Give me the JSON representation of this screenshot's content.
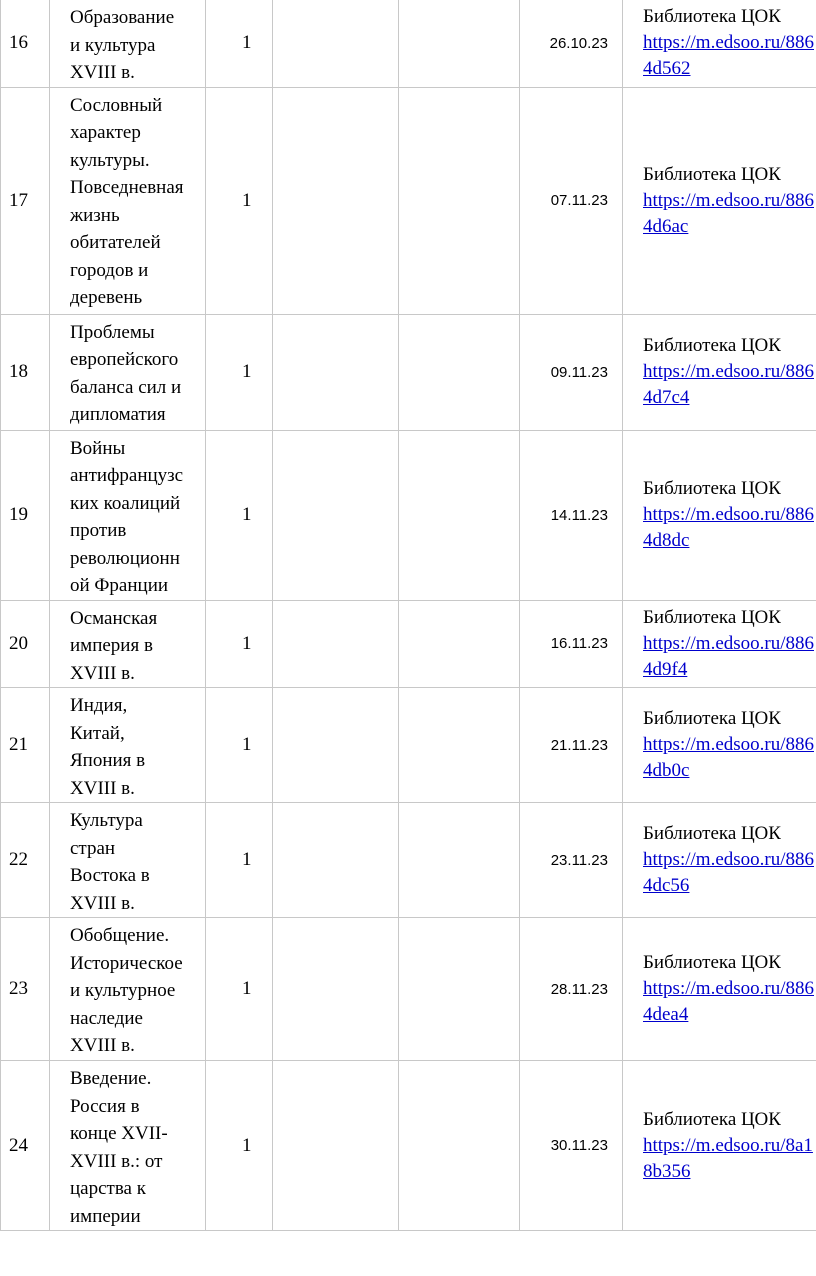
{
  "rows": [
    {
      "num": "16",
      "topic": "Образование\nи культура\nXVIII в.",
      "hours": "1",
      "date": "26.10.23",
      "resource": "Библиотека ЦОК",
      "link": "https://m.edsoo.ru/8864d562"
    },
    {
      "num": "17",
      "topic": "Сословный\nхарактер\nкультуры.\nПовседневная\nжизнь\nобитателей\nгородов и\nдеревень",
      "hours": "1",
      "date": "07.11.23",
      "resource": "Библиотека ЦОК",
      "link": "https://m.edsoo.ru/8864d6ac"
    },
    {
      "num": "18",
      "topic": "Проблемы\nевропейского\nбаланса сил и\nдипломатия",
      "hours": "1",
      "date": "09.11.23",
      "resource": "Библиотека ЦОК",
      "link": "https://m.edsoo.ru/8864d7c4"
    },
    {
      "num": "19",
      "topic": "Войны\nантифранцузс\nких коалиций\nпротив\nреволюционн\nой Франции",
      "hours": "1",
      "date": "14.11.23",
      "resource": "Библиотека ЦОК",
      "link": "https://m.edsoo.ru/8864d8dc"
    },
    {
      "num": "20",
      "topic": "Османская\nимперия в\nXVIII в.",
      "hours": "1",
      "date": "16.11.23",
      "resource": "Библиотека ЦОК",
      "link": "https://m.edsoo.ru/8864d9f4"
    },
    {
      "num": "21",
      "topic": "Индия,\nКитай,\nЯпония в\nXVIII в.",
      "hours": "1",
      "date": "21.11.23",
      "resource": "Библиотека ЦОК",
      "link": "https://m.edsoo.ru/8864db0c"
    },
    {
      "num": "22",
      "topic": "Культура\nстран\nВостока в\nXVIII в.",
      "hours": "1",
      "date": "23.11.23",
      "resource": "Библиотека ЦОК",
      "link": "https://m.edsoo.ru/8864dc56"
    },
    {
      "num": "23",
      "topic": "Обобщение.\nИсторическое\nи культурное\nнаследие\nXVIII в.",
      "hours": "1",
      "date": "28.11.23",
      "resource": "Библиотека ЦОК",
      "link": "https://m.edsoo.ru/8864dea4"
    },
    {
      "num": "24",
      "topic": "Введение.\nРоссия в\nконце XVII-\nXVIII в.: от\nцарства к\nимперии",
      "hours": "1",
      "date": "30.11.23",
      "resource": "Библиотека ЦОК",
      "link": "https://m.edsoo.ru/8a18b356"
    }
  ]
}
